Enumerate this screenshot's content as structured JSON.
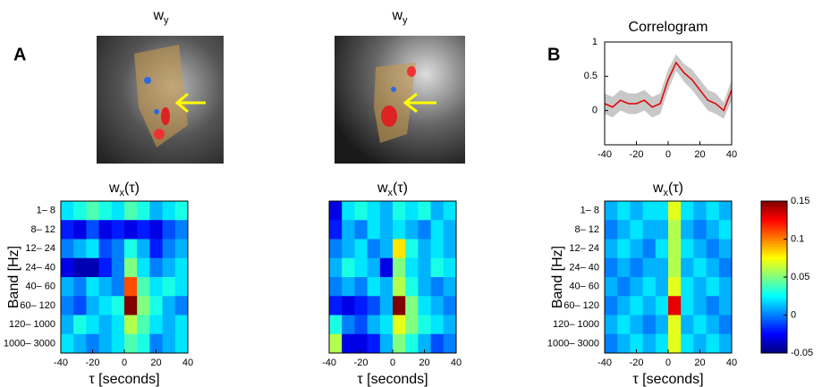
{
  "panels": {
    "a": "A",
    "b": "B"
  },
  "images": [
    {
      "title": {
        "base": "w",
        "sub": "y"
      }
    },
    {
      "title": {
        "base": "w",
        "sub": "y"
      }
    }
  ],
  "chart_data": [
    {
      "type": "heatmap",
      "title": {
        "base": "w",
        "sub": "x",
        "rest": "(τ)"
      },
      "categories": [
        "1– 8",
        "8– 12",
        "12– 24",
        "24– 40",
        "40– 60",
        "60– 120",
        "120– 1000",
        "1000– 3000"
      ],
      "ylabel": "Band [Hz]",
      "xlabel": "τ [seconds]",
      "xlim": [
        -40,
        40
      ],
      "xticks": [
        -40,
        -20,
        0,
        20,
        40
      ],
      "zlim": [
        -0.05,
        0.15
      ],
      "z": [
        [
          0.02,
          0.03,
          0.04,
          0.03,
          0.02,
          0.04,
          0.03,
          0.01,
          0.02,
          0.03
        ],
        [
          -0.02,
          -0.03,
          -0.01,
          -0.03,
          -0.02,
          -0.03,
          -0.02,
          -0.03,
          -0.01,
          0.0
        ],
        [
          0.0,
          0.01,
          0.02,
          -0.01,
          0.0,
          0.03,
          0.01,
          -0.02,
          0.0,
          0.01
        ],
        [
          -0.03,
          -0.04,
          -0.04,
          -0.02,
          0.0,
          0.05,
          0.02,
          0.0,
          0.01,
          0.02
        ],
        [
          0.01,
          0.0,
          0.02,
          0.01,
          0.0,
          0.11,
          0.04,
          0.02,
          0.03,
          0.02
        ],
        [
          0.0,
          -0.01,
          0.01,
          0.02,
          0.03,
          0.15,
          0.05,
          0.03,
          0.01,
          0.0
        ],
        [
          0.01,
          0.03,
          0.02,
          0.01,
          0.02,
          0.06,
          0.04,
          0.02,
          0.01,
          0.02
        ],
        [
          0.02,
          0.01,
          0.0,
          0.01,
          0.02,
          0.04,
          0.03,
          0.0,
          0.01,
          0.02
        ]
      ]
    },
    {
      "type": "heatmap",
      "title": {
        "base": "w",
        "sub": "x",
        "rest": "(τ)"
      },
      "xlabel": "τ [seconds]",
      "xlim": [
        -40,
        40
      ],
      "xticks": [
        -40,
        -20,
        0,
        20,
        40
      ],
      "zlim": [
        -0.05,
        0.15
      ],
      "z": [
        [
          -0.03,
          0.02,
          0.03,
          0.02,
          0.01,
          0.03,
          0.02,
          0.03,
          0.01,
          0.02
        ],
        [
          -0.02,
          0.01,
          0.0,
          0.02,
          0.01,
          0.02,
          0.01,
          0.0,
          0.02,
          0.01
        ],
        [
          0.0,
          0.01,
          0.02,
          0.0,
          0.01,
          0.08,
          0.03,
          0.01,
          0.02,
          0.01
        ],
        [
          0.01,
          0.03,
          0.02,
          0.01,
          -0.03,
          0.05,
          0.02,
          0.01,
          0.03,
          0.02
        ],
        [
          0.0,
          0.01,
          0.0,
          0.02,
          0.01,
          0.06,
          0.03,
          0.01,
          0.0,
          0.01
        ],
        [
          -0.02,
          -0.03,
          -0.02,
          -0.01,
          0.01,
          0.15,
          0.05,
          0.02,
          0.01,
          0.0
        ],
        [
          0.03,
          0.0,
          -0.01,
          0.01,
          0.02,
          0.07,
          0.05,
          0.03,
          0.02,
          0.01
        ],
        [
          0.06,
          -0.03,
          -0.03,
          -0.02,
          0.01,
          0.05,
          0.03,
          0.01,
          -0.01,
          0.0
        ]
      ]
    },
    {
      "type": "line",
      "title": "Correlogram",
      "xlim": [
        -40,
        40
      ],
      "xticks": [
        -40,
        -20,
        0,
        20,
        40
      ],
      "ylim": [
        -0.5,
        1
      ],
      "yticks": [
        0,
        0.5,
        1
      ],
      "color": "#e00000",
      "band_color": "#c8c8c8",
      "x": [
        -40,
        -35,
        -30,
        -25,
        -20,
        -15,
        -10,
        -5,
        0,
        5,
        10,
        15,
        20,
        25,
        30,
        35,
        40
      ],
      "values": [
        0.1,
        0.05,
        0.15,
        0.1,
        0.1,
        0.15,
        0.05,
        0.1,
        0.45,
        0.7,
        0.55,
        0.45,
        0.3,
        0.15,
        0.1,
        0.0,
        0.3
      ],
      "lower": [
        -0.05,
        -0.1,
        0.0,
        -0.05,
        -0.05,
        0.0,
        -0.1,
        -0.05,
        0.3,
        0.58,
        0.42,
        0.3,
        0.15,
        0.0,
        -0.05,
        -0.12,
        0.15
      ],
      "upper": [
        0.25,
        0.2,
        0.3,
        0.25,
        0.25,
        0.3,
        0.2,
        0.25,
        0.6,
        0.82,
        0.68,
        0.6,
        0.45,
        0.3,
        0.25,
        0.12,
        0.45
      ]
    },
    {
      "type": "heatmap",
      "title": {
        "base": "w",
        "sub": "x",
        "rest": "(τ)"
      },
      "categories": [
        "1– 8",
        "8– 12",
        "12– 24",
        "24– 40",
        "40– 60",
        "60– 120",
        "120– 1000",
        "1000– 3000"
      ],
      "ylabel": "Band [Hz]",
      "xlabel": "τ [seconds]",
      "xlim": [
        -40,
        40
      ],
      "xticks": [
        -40,
        -20,
        0,
        20,
        40
      ],
      "zlim": [
        -0.05,
        0.15
      ],
      "colorbar_ticks": [
        0.15,
        0.1,
        0.05,
        0,
        -0.05
      ],
      "z": [
        [
          0.01,
          0.02,
          0.01,
          0.02,
          0.02,
          0.07,
          0.02,
          0.01,
          0.02,
          0.01
        ],
        [
          0.0,
          0.01,
          0.02,
          0.01,
          0.01,
          0.06,
          0.01,
          0.0,
          0.01,
          0.02
        ],
        [
          0.01,
          0.02,
          0.01,
          0.0,
          0.02,
          0.06,
          0.02,
          0.01,
          0.0,
          0.01
        ],
        [
          0.0,
          0.01,
          0.0,
          0.01,
          0.01,
          0.06,
          0.01,
          0.02,
          0.01,
          0.0
        ],
        [
          0.01,
          0.0,
          0.01,
          0.02,
          0.01,
          0.07,
          0.02,
          0.01,
          0.02,
          0.01
        ],
        [
          0.0,
          0.01,
          0.02,
          0.01,
          0.02,
          0.13,
          0.02,
          0.01,
          0.0,
          0.01
        ],
        [
          0.01,
          0.02,
          0.01,
          0.0,
          0.01,
          0.07,
          0.01,
          0.02,
          0.01,
          0.0
        ],
        [
          0.0,
          0.01,
          0.02,
          0.01,
          0.02,
          0.07,
          0.02,
          0.01,
          0.02,
          0.01
        ]
      ]
    }
  ]
}
